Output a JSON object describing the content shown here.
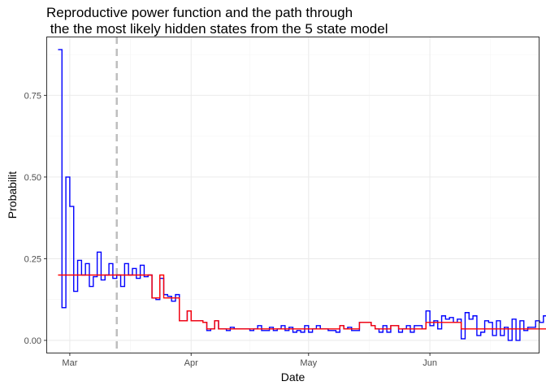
{
  "chart_data": {
    "type": "line",
    "title_line1": "Reproductive power function and the path through",
    "title_line2": " the the most likely hidden states from the 5 state model",
    "xlabel": "Date",
    "ylabel": "Probabilit",
    "x_start": "2020-02-27",
    "xlim": [
      "2020-02-24",
      "2020-06-29"
    ],
    "ylim": [
      -0.04,
      0.93
    ],
    "x_ticks": [
      {
        "date": "2020-03-01",
        "label": "Mar"
      },
      {
        "date": "2020-04-01",
        "label": "Apr"
      },
      {
        "date": "2020-05-01",
        "label": "May"
      },
      {
        "date": "2020-06-01",
        "label": "Jun"
      }
    ],
    "y_ticks": [
      {
        "value": 0.0,
        "label": "0.00"
      },
      {
        "value": 0.25,
        "label": "0.25"
      },
      {
        "value": 0.5,
        "label": "0.50"
      },
      {
        "value": 0.75,
        "label": "0.75"
      }
    ],
    "vline": {
      "date": "2020-03-13",
      "color": "#bebebe",
      "style": "dashed"
    },
    "grid": true,
    "legend": "none",
    "series": [
      {
        "color": "#0000ff",
        "step": true,
        "values": [
          0.89,
          0.1,
          0.5,
          0.41,
          0.15,
          0.245,
          0.2,
          0.235,
          0.165,
          0.195,
          0.27,
          0.185,
          0.2,
          0.235,
          0.19,
          0.2,
          0.165,
          0.235,
          0.2,
          0.22,
          0.19,
          0.23,
          0.195,
          0.2,
          0.13,
          0.125,
          0.19,
          0.14,
          0.135,
          0.12,
          0.14,
          0.06,
          0.06,
          0.09,
          0.06,
          0.06,
          0.06,
          0.055,
          0.03,
          0.035,
          0.06,
          0.035,
          0.035,
          0.03,
          0.04,
          0.035,
          0.035,
          0.035,
          0.035,
          0.03,
          0.035,
          0.045,
          0.03,
          0.03,
          0.04,
          0.03,
          0.035,
          0.045,
          0.03,
          0.04,
          0.025,
          0.03,
          0.025,
          0.045,
          0.025,
          0.035,
          0.045,
          0.035,
          0.035,
          0.03,
          0.03,
          0.025,
          0.045,
          0.035,
          0.04,
          0.03,
          0.03,
          0.055,
          0.055,
          0.055,
          0.045,
          0.035,
          0.025,
          0.045,
          0.025,
          0.045,
          0.045,
          0.025,
          0.035,
          0.045,
          0.025,
          0.045,
          0.045,
          0.035,
          0.09,
          0.045,
          0.06,
          0.035,
          0.075,
          0.065,
          0.07,
          0.055,
          0.065,
          0.005,
          0.085,
          0.065,
          0.075,
          0.015,
          0.025,
          0.06,
          0.055,
          0.015,
          0.06,
          0.015,
          0.04,
          0.0,
          0.065,
          0.0,
          0.06,
          0.03,
          0.04,
          0.04,
          0.06,
          0.055,
          0.075,
          0.08,
          0.105,
          0.0,
          0.0
        ]
      },
      {
        "color": "#ff0000",
        "step": true,
        "values": [
          0.2,
          0.2,
          0.2,
          0.2,
          0.2,
          0.2,
          0.2,
          0.2,
          0.2,
          0.2,
          0.2,
          0.2,
          0.2,
          0.2,
          0.2,
          0.2,
          0.2,
          0.2,
          0.2,
          0.2,
          0.2,
          0.2,
          0.2,
          0.2,
          0.13,
          0.13,
          0.2,
          0.13,
          0.13,
          0.13,
          0.13,
          0.06,
          0.06,
          0.09,
          0.06,
          0.06,
          0.06,
          0.055,
          0.035,
          0.035,
          0.06,
          0.035,
          0.035,
          0.035,
          0.035,
          0.035,
          0.035,
          0.035,
          0.035,
          0.035,
          0.035,
          0.035,
          0.035,
          0.035,
          0.035,
          0.035,
          0.035,
          0.035,
          0.035,
          0.035,
          0.035,
          0.035,
          0.035,
          0.035,
          0.035,
          0.035,
          0.035,
          0.035,
          0.035,
          0.035,
          0.035,
          0.035,
          0.045,
          0.035,
          0.035,
          0.035,
          0.035,
          0.055,
          0.055,
          0.055,
          0.045,
          0.035,
          0.035,
          0.035,
          0.035,
          0.045,
          0.045,
          0.035,
          0.035,
          0.035,
          0.035,
          0.035,
          0.035,
          0.035,
          0.055,
          0.055,
          0.055,
          0.055,
          0.055,
          0.055,
          0.055,
          0.055,
          0.055,
          0.035,
          0.035,
          0.035,
          0.035,
          0.035,
          0.035,
          0.035,
          0.035,
          0.035,
          0.035,
          0.035,
          0.035,
          0.035,
          0.035,
          0.035,
          0.035,
          0.035,
          0.035,
          0.035,
          0.035,
          0.035,
          0.035,
          0.035,
          0.035,
          0.035,
          0.035
        ]
      }
    ]
  }
}
